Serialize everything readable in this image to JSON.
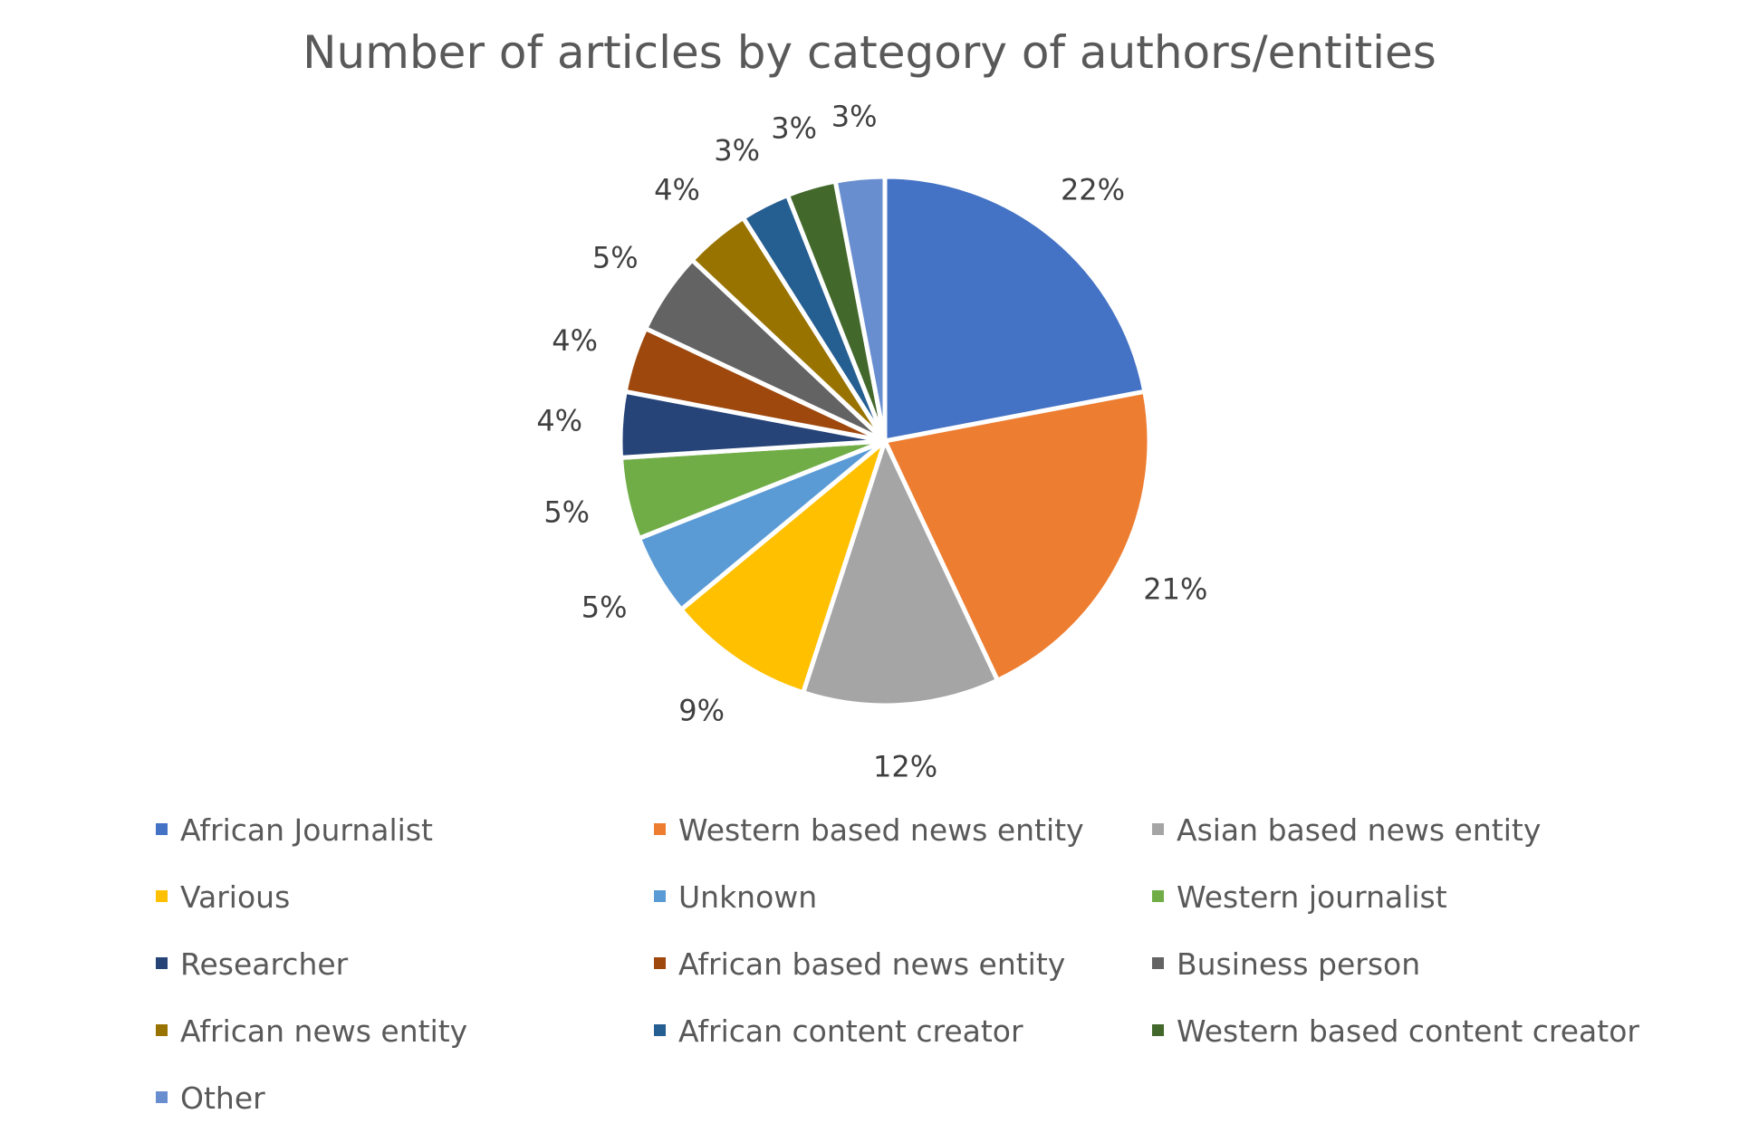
{
  "chart_data": {
    "type": "pie",
    "title": "Number of articles by category of authors/entities",
    "start_angle_deg": 0,
    "direction": "clockwise",
    "legend_position": "bottom",
    "slices": [
      {
        "label": "African Journalist",
        "value": 22,
        "display": "22%",
        "color": "#4472C4"
      },
      {
        "label": "Western based news entity",
        "value": 21,
        "display": "21%",
        "color": "#ED7D31"
      },
      {
        "label": "Asian based news entity",
        "value": 12,
        "display": "12%",
        "color": "#A5A5A5"
      },
      {
        "label": "Various",
        "value": 9,
        "display": "9%",
        "color": "#FFC000"
      },
      {
        "label": "Unknown",
        "value": 5,
        "display": "5%",
        "color": "#5B9BD5"
      },
      {
        "label": "Western journalist",
        "value": 5,
        "display": "5%",
        "color": "#70AD47"
      },
      {
        "label": "Researcher",
        "value": 4,
        "display": "4%",
        "color": "#264478"
      },
      {
        "label": "African based news entity",
        "value": 4,
        "display": "4%",
        "color": "#9E480E"
      },
      {
        "label": "Business person",
        "value": 5,
        "display": "5%",
        "color": "#636363"
      },
      {
        "label": "African news entity",
        "value": 4,
        "display": "4%",
        "color": "#997300"
      },
      {
        "label": "African content creator",
        "value": 3,
        "display": "3%",
        "color": "#255E91"
      },
      {
        "label": "Western based content creator",
        "value": 3,
        "display": "3%",
        "color": "#43682B"
      },
      {
        "label": "Other",
        "value": 3,
        "display": "3%",
        "color": "#698ED0"
      }
    ]
  }
}
